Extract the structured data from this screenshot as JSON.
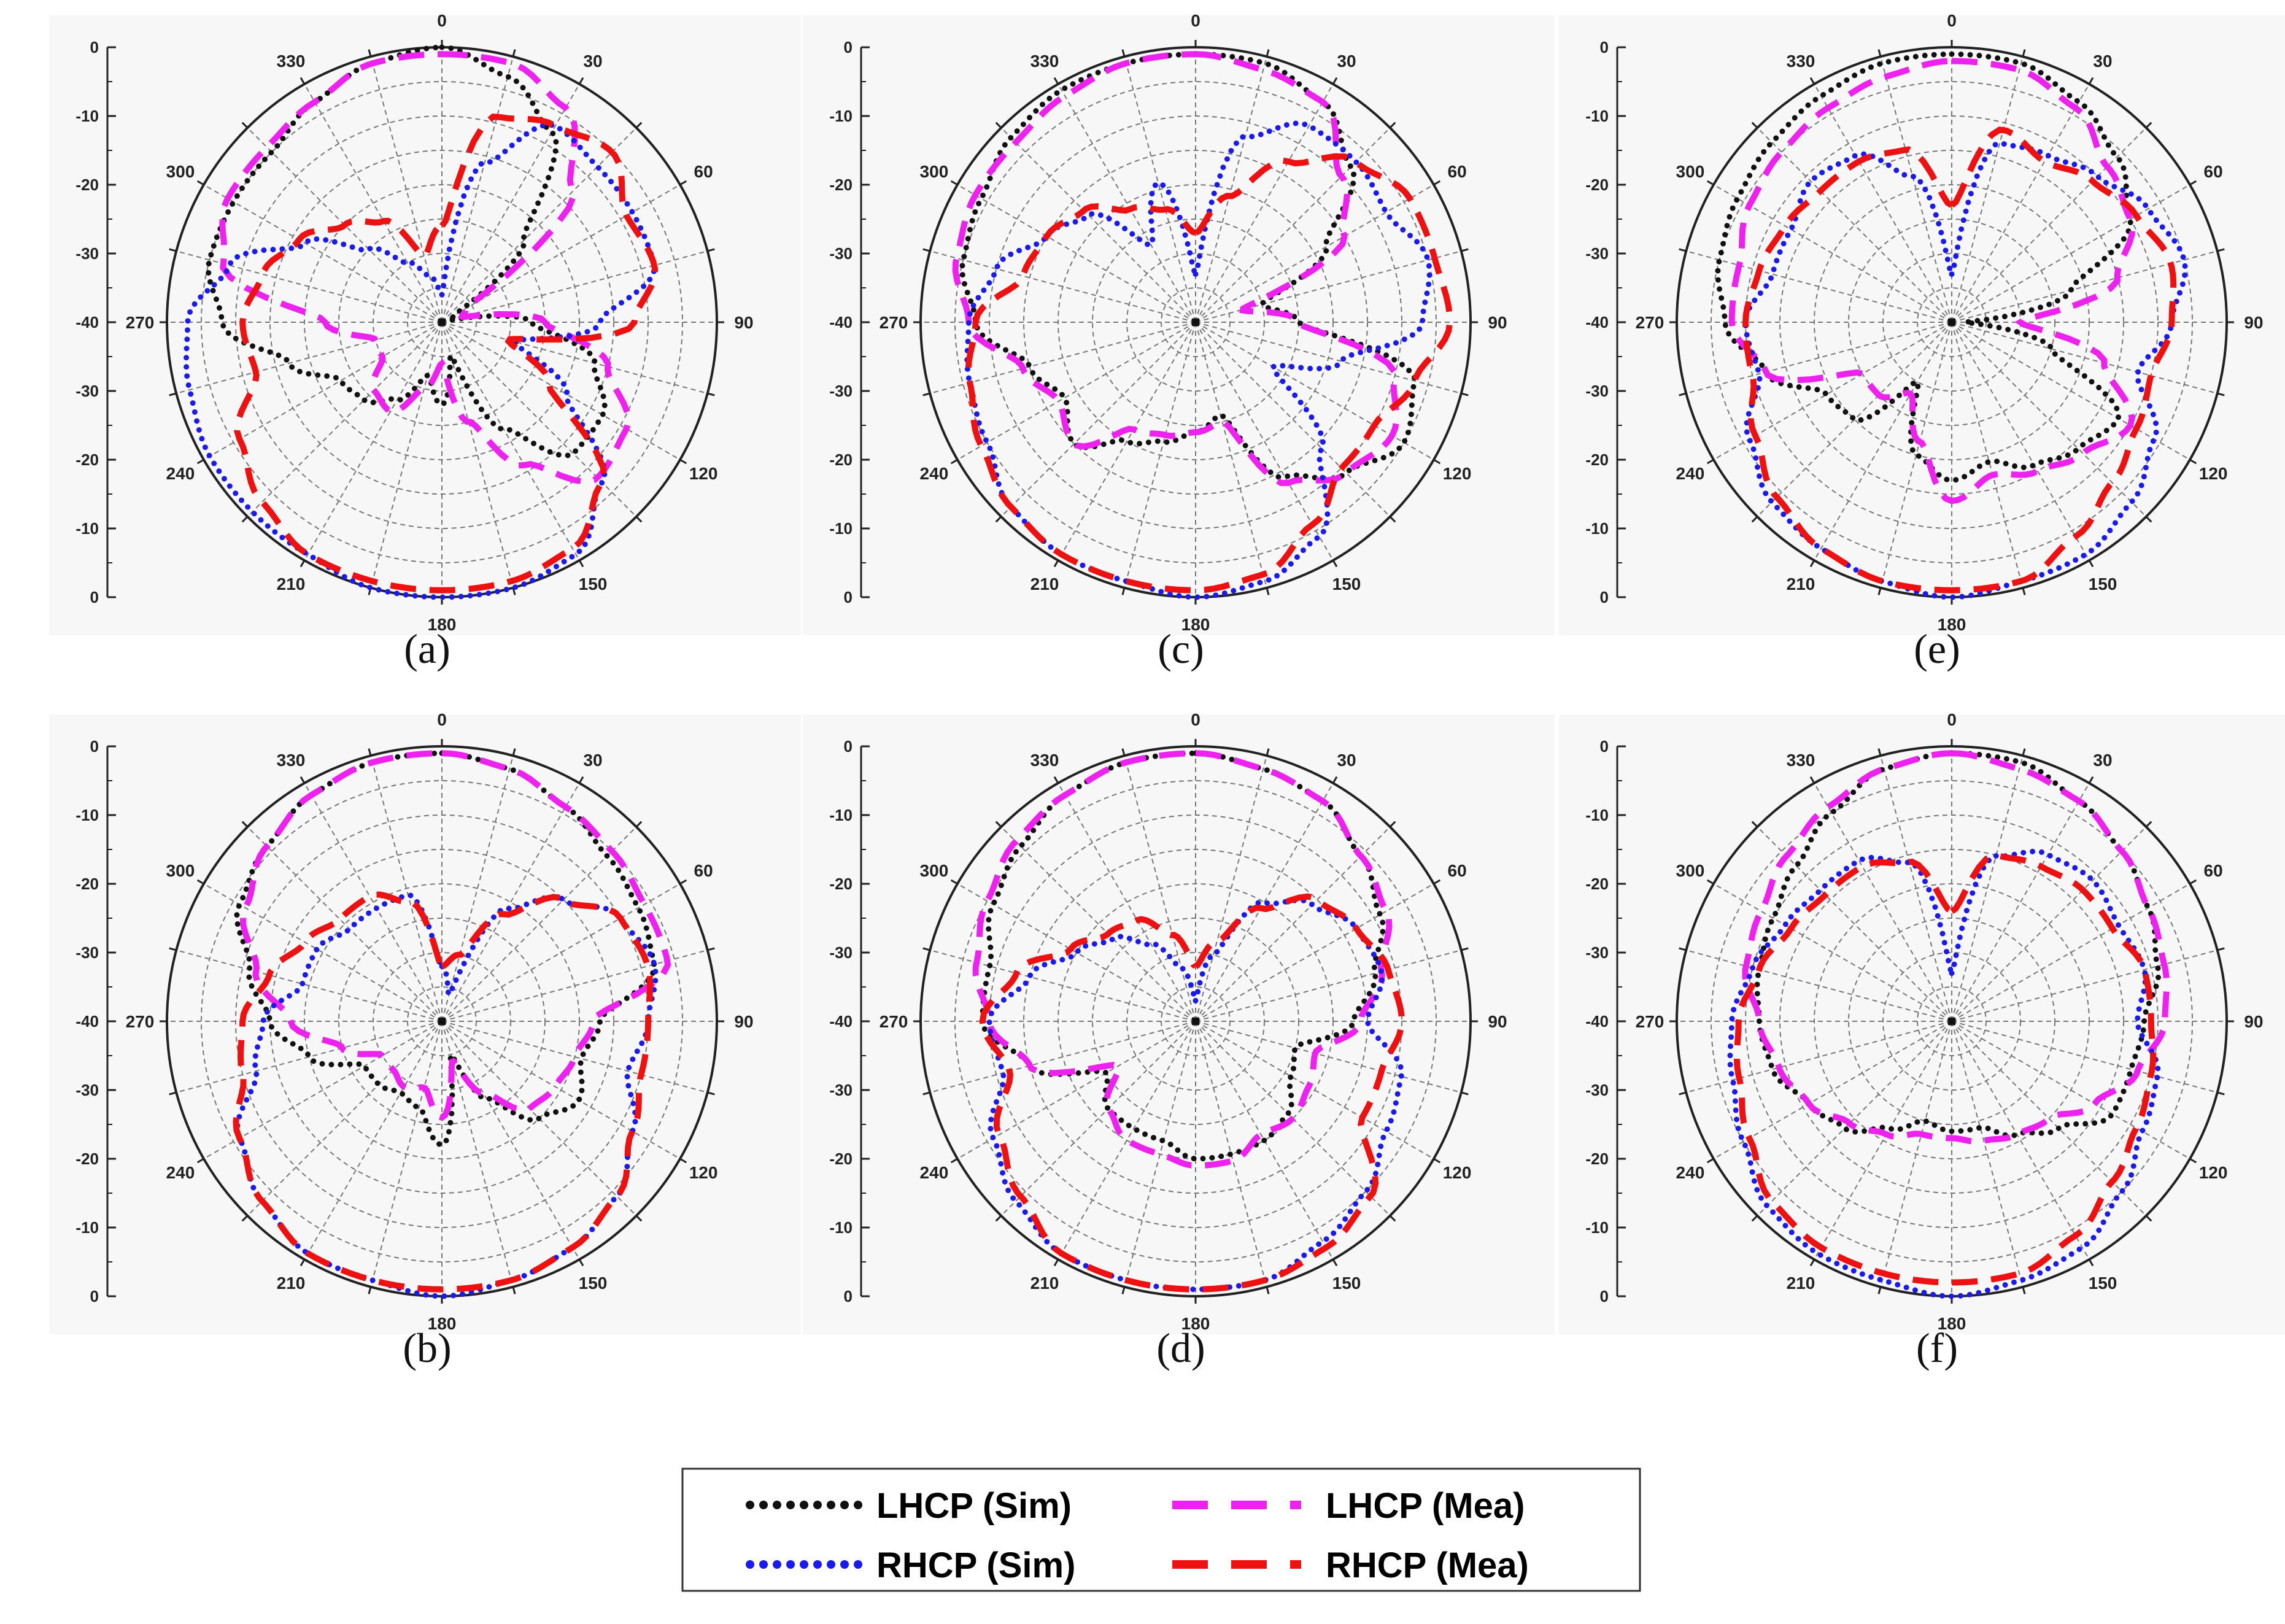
{
  "figure": {
    "legend": [
      {
        "label": "LHCP (Sim)",
        "color": "#111111",
        "style": "dotted"
      },
      {
        "label": "LHCP (Mea)",
        "color": "#ee22ee",
        "style": "dashed"
      },
      {
        "label": "RHCP (Sim)",
        "color": "#1a1aee",
        "style": "dotted"
      },
      {
        "label": "RHCP (Mea)",
        "color": "#ee1111",
        "style": "dashed"
      }
    ]
  },
  "chart_data": [
    {
      "type": "polar",
      "caption": "(a)",
      "radial_range": [
        -40,
        0
      ],
      "radial_tick_labels": [
        "0",
        "-10",
        "-20",
        "-30",
        "-40",
        "-30",
        "-20",
        "-10",
        "0"
      ],
      "angle_labels": [
        "0",
        "30",
        "60",
        "90",
        "120",
        "150",
        "180",
        "210",
        "240",
        "270",
        "300",
        "330"
      ],
      "angles": [
        0,
        15,
        30,
        45,
        60,
        75,
        90,
        105,
        120,
        135,
        150,
        165,
        180,
        195,
        210,
        225,
        240,
        255,
        270,
        285,
        300,
        315,
        330,
        345
      ],
      "series": [
        {
          "name": "LHCP (Sim)",
          "values": [
            0,
            -3,
            -8,
            -23,
            -38,
            -39,
            -27,
            -17,
            -13,
            -13,
            -22,
            -35,
            -28,
            -32,
            -27,
            -24,
            -23,
            -17,
            -8,
            -5,
            -5,
            -5,
            -3,
            -1
          ]
        },
        {
          "name": "LHCP (Mea)",
          "values": [
            -1,
            -1,
            -4,
            -13,
            -36,
            -37,
            -25,
            -15,
            -9,
            -8,
            -16,
            -25,
            -34,
            -30,
            -25,
            -26,
            -30,
            -30,
            -23,
            -7,
            -4,
            -4,
            -3,
            -1
          ]
        },
        {
          "name": "RHCP (Sim)",
          "values": [
            -36,
            -16,
            -7,
            -8,
            -8,
            -8,
            -17,
            -29,
            -19,
            -7,
            -1,
            0,
            0,
            0,
            -1,
            -1,
            -1,
            -2,
            -3,
            -8,
            -17,
            -25,
            -30,
            -33
          ]
        },
        {
          "name": "RHCP (Mea)",
          "values": [
            -26,
            -9,
            -7,
            -5,
            -9,
            -8,
            -12,
            -30,
            -22,
            -7,
            -2,
            -1,
            -1,
            -1,
            -1,
            -3,
            -6,
            -12,
            -11,
            -13,
            -16,
            -20,
            -23,
            -30
          ]
        }
      ]
    },
    {
      "type": "polar",
      "caption": "(b)",
      "radial_range": [
        -40,
        0
      ],
      "radial_tick_labels": [
        "0",
        "-10",
        "-20",
        "-30",
        "-40",
        "-30",
        "-20",
        "-10",
        "0"
      ],
      "angle_labels": [
        "0",
        "30",
        "60",
        "90",
        "120",
        "150",
        "180",
        "210",
        "240",
        "270",
        "300",
        "330"
      ],
      "angles": [
        0,
        15,
        30,
        45,
        60,
        75,
        90,
        105,
        120,
        135,
        150,
        165,
        180,
        195,
        210,
        225,
        240,
        255,
        270,
        285,
        300,
        315,
        330,
        345
      ],
      "series": [
        {
          "name": "LHCP (Sim)",
          "values": [
            -1,
            -2,
            -4,
            -6,
            -7,
            -8,
            -17,
            -19,
            -17,
            -20,
            -27,
            -35,
            -22,
            -27,
            -28,
            -27,
            -27,
            -20,
            -15,
            -11,
            -6,
            -4,
            -2,
            -1
          ]
        },
        {
          "name": "LHCP (Mea)",
          "values": [
            -1,
            -2,
            -4,
            -5,
            -6,
            -6,
            -18,
            -20,
            -21,
            -22,
            -28,
            -34,
            -26,
            -30,
            -29,
            -30,
            -30,
            -25,
            -18,
            -12,
            -7,
            -4,
            -2,
            -1
          ]
        },
        {
          "name": "RHCP (Sim)",
          "values": [
            -32,
            -36,
            -21,
            -15,
            -10,
            -8,
            -10,
            -12,
            -8,
            -4,
            -2,
            -1,
            0,
            -1,
            -1,
            -3,
            -6,
            -12,
            -14,
            -19,
            -19,
            -21,
            -21,
            -21
          ]
        },
        {
          "name": "RHCP (Mea)",
          "values": [
            -32,
            -30,
            -22,
            -15,
            -10,
            -9,
            -10,
            -10,
            -8,
            -4,
            -2,
            -1,
            -1,
            -1,
            -1,
            -3,
            -6,
            -10,
            -11,
            -14,
            -17,
            -19,
            -19,
            -22
          ]
        }
      ]
    },
    {
      "type": "polar",
      "caption": "(c)",
      "radial_range": [
        -40,
        0
      ],
      "radial_tick_labels": [
        "0",
        "-10",
        "-20",
        "-30",
        "-40",
        "-30",
        "-20",
        "-10",
        "0"
      ],
      "angle_labels": [
        "0",
        "30",
        "60",
        "90",
        "120",
        "150",
        "180",
        "210",
        "240",
        "270",
        "300",
        "330"
      ],
      "angles": [
        0,
        15,
        30,
        45,
        60,
        75,
        90,
        105,
        120,
        135,
        150,
        165,
        180,
        195,
        210,
        225,
        240,
        255,
        270,
        285,
        300,
        315,
        330,
        345
      ],
      "series": [
        {
          "name": "LHCP (Sim)",
          "values": [
            -1,
            -1,
            -3,
            -8,
            -18,
            -30,
            -25,
            -7,
            -5,
            -9,
            -14,
            -26,
            -24,
            -22,
            -20,
            -15,
            -18,
            -15,
            -8,
            -5,
            -4,
            -2,
            -1,
            -1
          ]
        },
        {
          "name": "LHCP (Mea)",
          "values": [
            -1,
            -2,
            -3,
            -10,
            -15,
            -33,
            -25,
            -10,
            -7,
            -9,
            -13,
            -25,
            -24,
            -23,
            -22,
            -15,
            -17,
            -14,
            -7,
            -4,
            -3,
            -3,
            -2,
            -1
          ]
        },
        {
          "name": "RHCP (Sim)",
          "values": [
            -33,
            -12,
            -7,
            -7,
            -8,
            -5,
            -7,
            -18,
            -27,
            -14,
            -4,
            -1,
            0,
            -1,
            -1,
            -2,
            -5,
            -6,
            -7,
            -10,
            -15,
            -18,
            -27,
            -19
          ]
        },
        {
          "name": "RHCP (Mea)",
          "values": [
            -27,
            -21,
            -13,
            -7,
            -4,
            -4,
            -3,
            -7,
            -10,
            -10,
            -6,
            -2,
            -1,
            -1,
            -1,
            -2,
            -4,
            -6,
            -8,
            -14,
            -15,
            -17,
            -21,
            -23
          ]
        }
      ]
    },
    {
      "type": "polar",
      "caption": "(d)",
      "radial_range": [
        -40,
        0
      ],
      "radial_tick_labels": [
        "0",
        "-10",
        "-20",
        "-30",
        "-40",
        "-30",
        "-20",
        "-10",
        "0"
      ],
      "angle_labels": [
        "0",
        "30",
        "60",
        "90",
        "120",
        "150",
        "180",
        "210",
        "240",
        "270",
        "300",
        "330"
      ],
      "angles": [
        0,
        15,
        30,
        45,
        60,
        75,
        90,
        105,
        120,
        135,
        150,
        165,
        180,
        195,
        210,
        225,
        240,
        255,
        270,
        285,
        300,
        315,
        330,
        345
      ],
      "series": [
        {
          "name": "LHCP (Sim)",
          "values": [
            -1,
            -2,
            -3,
            -6,
            -9,
            -13,
            -17,
            -25,
            -24,
            -21,
            -20,
            -20,
            -20,
            -22,
            -22,
            -22,
            -25,
            -15,
            -9,
            -9,
            -6,
            -4,
            -2,
            -1
          ]
        },
        {
          "name": "LHCP (Mea)",
          "values": [
            -1,
            -2,
            -3,
            -6,
            -8,
            -12,
            -16,
            -22,
            -21,
            -20,
            -21,
            -19,
            -19,
            -20,
            -20,
            -22,
            -27,
            -15,
            -10,
            -7,
            -5,
            -3,
            -2,
            -1
          ]
        },
        {
          "name": "RHCP (Sim)",
          "values": [
            -37,
            -30,
            -20,
            -16,
            -13,
            -12,
            -15,
            -9,
            -8,
            -5,
            -3,
            -1,
            -1,
            -1,
            -1,
            -3,
            -6,
            -11,
            -10,
            -15,
            -20,
            -23,
            -27,
            -32
          ]
        },
        {
          "name": "RHCP (Mea)",
          "values": [
            -32,
            -28,
            -21,
            -15,
            -13,
            -11,
            -10,
            -12,
            -12,
            -4,
            -2,
            -1,
            -1,
            -1,
            -1,
            -4,
            -7,
            -12,
            -9,
            -13,
            -19,
            -22,
            -23,
            -27
          ]
        }
      ]
    },
    {
      "type": "polar",
      "caption": "(e)",
      "radial_range": [
        -40,
        0
      ],
      "radial_tick_labels": [
        "0",
        "-10",
        "-20",
        "-30",
        "-40",
        "-30",
        "-20",
        "-10",
        "0"
      ],
      "angle_labels": [
        "0",
        "30",
        "60",
        "90",
        "120",
        "150",
        "180",
        "210",
        "240",
        "270",
        "300",
        "330"
      ],
      "angles": [
        0,
        15,
        30,
        45,
        60,
        75,
        90,
        105,
        120,
        135,
        150,
        165,
        180,
        195,
        210,
        225,
        240,
        255,
        270,
        285,
        300,
        315,
        330,
        345
      ],
      "series": [
        {
          "name": "LHCP (Sim)",
          "values": [
            -1,
            -1,
            -3,
            -6,
            -10,
            -22,
            -38,
            -25,
            -12,
            -14,
            -16,
            -19,
            -17,
            -20,
            -30,
            -20,
            -19,
            -12,
            -7,
            -5,
            -4,
            -3,
            -2,
            -1
          ]
        },
        {
          "name": "LHCP (Mea)",
          "values": [
            -2,
            -2,
            -4,
            -8,
            -10,
            -15,
            -30,
            -17,
            -10,
            -13,
            -15,
            -17,
            -14,
            -22,
            -28,
            -25,
            -25,
            -12,
            -8,
            -8,
            -6,
            -5,
            -4,
            -3
          ]
        },
        {
          "name": "RHCP (Sim)",
          "values": [
            -33,
            -13,
            -12,
            -10,
            -7,
            -5,
            -8,
            -12,
            -6,
            -3,
            -1,
            -1,
            0,
            -1,
            -2,
            -3,
            -6,
            -11,
            -10,
            -13,
            -13,
            -11,
            -12,
            -18
          ]
        },
        {
          "name": "RHCP (Mea)",
          "values": [
            -23,
            -11,
            -13,
            -11,
            -9,
            -7,
            -8,
            -10,
            -9,
            -7,
            -4,
            -1,
            -1,
            -1,
            -2,
            -4,
            -7,
            -10,
            -10,
            -11,
            -12,
            -13,
            -13,
            -14
          ]
        }
      ]
    },
    {
      "type": "polar",
      "caption": "(f)",
      "radial_range": [
        -40,
        0
      ],
      "radial_tick_labels": [
        "0",
        "-10",
        "-20",
        "-30",
        "-40",
        "-30",
        "-20",
        "-10",
        "0"
      ],
      "angle_labels": [
        "0",
        "30",
        "60",
        "90",
        "120",
        "150",
        "180",
        "210",
        "240",
        "270",
        "300",
        "330"
      ],
      "angles": [
        0,
        15,
        30,
        45,
        60,
        75,
        90,
        105,
        120,
        135,
        150,
        165,
        180,
        195,
        210,
        225,
        240,
        255,
        270,
        285,
        300,
        315,
        330,
        345
      ],
      "series": [
        {
          "name": "LHCP (Sim)",
          "values": [
            -1,
            -1,
            -3,
            -5,
            -7,
            -9,
            -12,
            -13,
            -13,
            -18,
            -21,
            -24,
            -24,
            -25,
            -22,
            -18,
            -16,
            -13,
            -12,
            -11,
            -10,
            -8,
            -5,
            -2
          ]
        },
        {
          "name": "LHCP (Mea)",
          "values": [
            -1,
            -2,
            -3,
            -5,
            -7,
            -8,
            -9,
            -12,
            -16,
            -20,
            -21,
            -22,
            -23,
            -23,
            -21,
            -19,
            -16,
            -14,
            -12,
            -9,
            -8,
            -6,
            -4,
            -2
          ]
        },
        {
          "name": "RHCP (Sim)",
          "values": [
            -33,
            -15,
            -12,
            -11,
            -12,
            -11,
            -13,
            -9,
            -8,
            -5,
            -2,
            -1,
            0,
            -1,
            -1,
            -2,
            -5,
            -7,
            -8,
            -10,
            -12,
            -13,
            -13,
            -16
          ]
        },
        {
          "name": "RHCP (Mea)",
          "values": [
            -24,
            -15,
            -14,
            -13,
            -13,
            -11,
            -11,
            -10,
            -9,
            -7,
            -4,
            -2,
            -2,
            -2,
            -2,
            -3,
            -6,
            -8,
            -9,
            -11,
            -13,
            -14,
            -14,
            -16
          ]
        }
      ]
    }
  ]
}
